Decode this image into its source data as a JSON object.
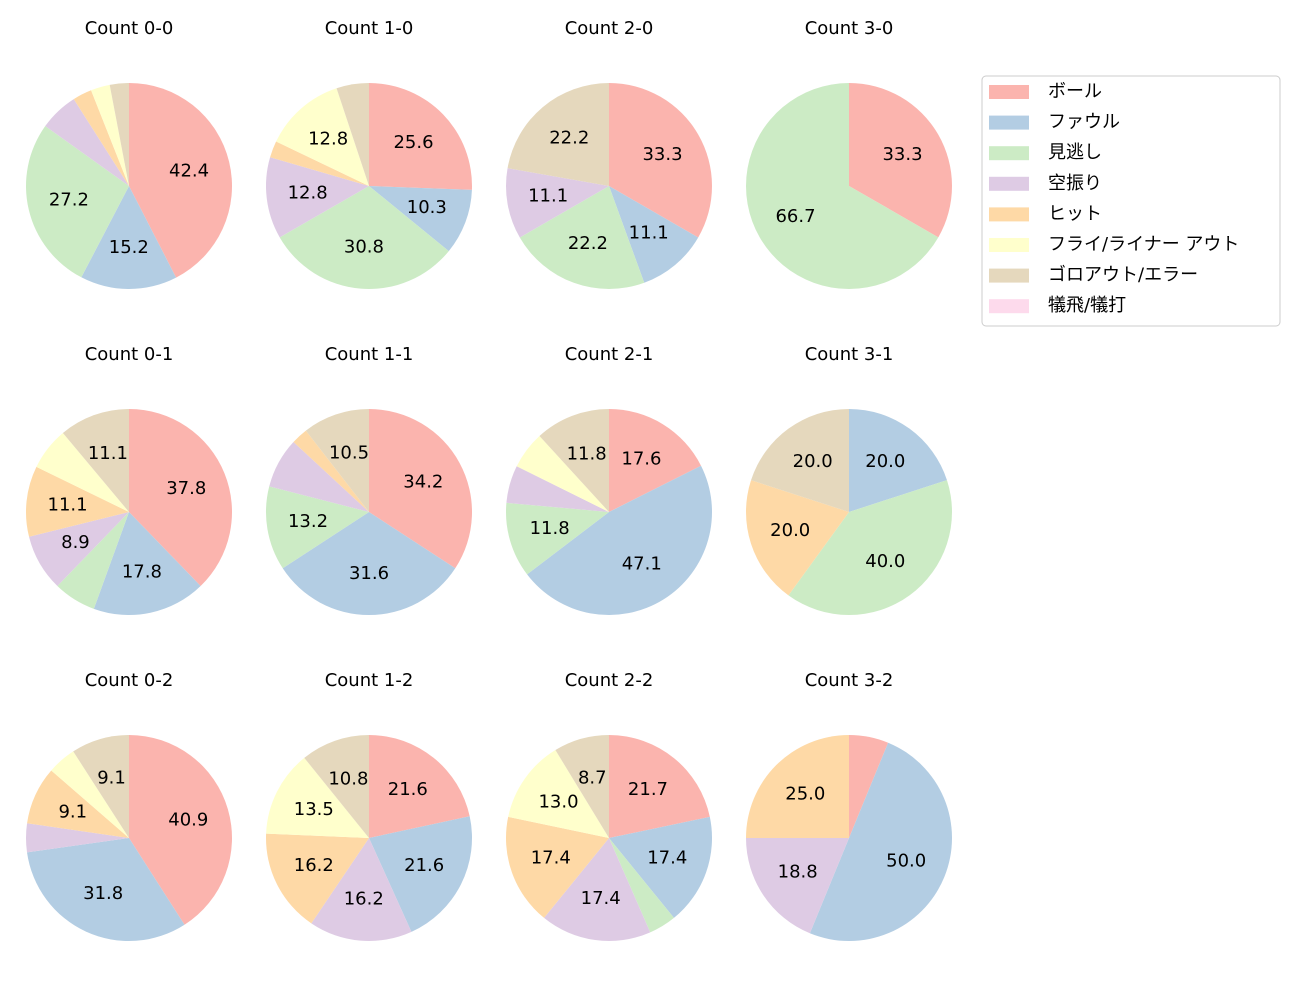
{
  "legend": {
    "labels": [
      "ボール",
      "ファウル",
      "見逃し",
      "空振り",
      "ヒット",
      "フライ/ライナー アウト",
      "ゴロアウト/エラー",
      "犠飛/犠打"
    ],
    "colors": [
      "#fbb4ae",
      "#b3cde3",
      "#ccebc5",
      "#decbe4",
      "#fed9a6",
      "#ffffcc",
      "#e5d8bd",
      "#fddaec"
    ]
  },
  "chart_data": [
    {
      "type": "pie",
      "title": "Count 0-0",
      "values": [
        42.4,
        15.2,
        27.2,
        6.1,
        3.0,
        3.0,
        3.0,
        0
      ],
      "value_labels": [
        "42.4",
        "15.2",
        "27.2",
        null,
        null,
        null,
        null,
        null
      ]
    },
    {
      "type": "pie",
      "title": "Count 1-0",
      "values": [
        25.6,
        10.3,
        30.8,
        12.8,
        2.6,
        12.8,
        5.1,
        0
      ],
      "value_labels": [
        "25.6",
        "10.3",
        "30.8",
        "12.8",
        null,
        "12.8",
        null,
        null
      ]
    },
    {
      "type": "pie",
      "title": "Count 2-0",
      "values": [
        33.3,
        11.1,
        22.2,
        11.1,
        0,
        0,
        22.2,
        0
      ],
      "value_labels": [
        "33.3",
        "11.1",
        "22.2",
        "11.1",
        null,
        null,
        "22.2",
        null
      ]
    },
    {
      "type": "pie",
      "title": "Count 3-0",
      "values": [
        33.3,
        0,
        66.7,
        0,
        0,
        0,
        0,
        0
      ],
      "value_labels": [
        "33.3",
        null,
        "66.7",
        null,
        null,
        null,
        null,
        null
      ]
    },
    {
      "type": "pie",
      "title": "Count 0-1",
      "values": [
        37.8,
        17.8,
        6.7,
        8.9,
        11.1,
        6.7,
        11.1,
        0
      ],
      "value_labels": [
        "37.8",
        "17.8",
        null,
        "8.9",
        "11.1",
        null,
        "11.1",
        null
      ]
    },
    {
      "type": "pie",
      "title": "Count 1-1",
      "values": [
        34.2,
        31.6,
        13.2,
        7.9,
        2.6,
        0,
        10.5,
        0
      ],
      "value_labels": [
        "34.2",
        "31.6",
        "13.2",
        null,
        null,
        null,
        "10.5",
        null
      ]
    },
    {
      "type": "pie",
      "title": "Count 2-1",
      "values": [
        17.6,
        47.1,
        11.8,
        5.9,
        0,
        5.9,
        11.8,
        0
      ],
      "value_labels": [
        "17.6",
        "47.1",
        "11.8",
        null,
        null,
        null,
        "11.8",
        null
      ]
    },
    {
      "type": "pie",
      "title": "Count 3-1",
      "values": [
        0,
        20.0,
        40.0,
        0,
        20.0,
        0,
        20.0,
        0
      ],
      "value_labels": [
        null,
        "20.0",
        "40.0",
        null,
        "20.0",
        null,
        "20.0",
        null
      ]
    },
    {
      "type": "pie",
      "title": "Count 0-2",
      "values": [
        40.9,
        31.8,
        0,
        4.5,
        9.1,
        4.5,
        9.1,
        0
      ],
      "value_labels": [
        "40.9",
        "31.8",
        null,
        null,
        "9.1",
        null,
        "9.1",
        null
      ]
    },
    {
      "type": "pie",
      "title": "Count 1-2",
      "values": [
        21.6,
        21.6,
        0,
        16.2,
        16.2,
        13.5,
        10.8,
        0
      ],
      "value_labels": [
        "21.6",
        "21.6",
        null,
        "16.2",
        "16.2",
        "13.5",
        "10.8",
        null
      ]
    },
    {
      "type": "pie",
      "title": "Count 2-2",
      "values": [
        21.7,
        17.4,
        4.3,
        17.4,
        17.4,
        13.0,
        8.7,
        0
      ],
      "value_labels": [
        "21.7",
        "17.4",
        null,
        "17.4",
        "17.4",
        "13.0",
        "8.7",
        null
      ]
    },
    {
      "type": "pie",
      "title": "Count 3-2",
      "values": [
        6.2,
        50.0,
        0,
        18.8,
        25.0,
        0,
        0,
        0
      ],
      "value_labels": [
        null,
        "50.0",
        null,
        "18.8",
        "25.0",
        null,
        null,
        null
      ]
    }
  ]
}
